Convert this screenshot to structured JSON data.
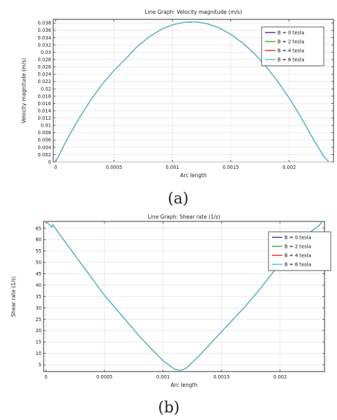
{
  "chart_data": [
    {
      "type": "line",
      "title": "Line Graph: Velocity magnitude (m/s)",
      "xlabel": "Arc length",
      "ylabel": "Velocity magnitude (m/s)",
      "caption": "(a)",
      "xlim": [
        -2e-05,
        0.00238
      ],
      "ylim": [
        0,
        0.039
      ],
      "xticks": [
        0,
        0.0005,
        0.001,
        0.0015,
        0.002
      ],
      "xtick_labels": [
        "0",
        "0.0005",
        "0.001",
        "0.0015",
        "0.002"
      ],
      "yticks": [
        0,
        0.002,
        0.004,
        0.006,
        0.008,
        0.01,
        0.012,
        0.014,
        0.016,
        0.018,
        0.02,
        0.022,
        0.024,
        0.026,
        0.028,
        0.03,
        0.032,
        0.034,
        0.036,
        0.038
      ],
      "ytick_labels": [
        "0",
        "0.002",
        "0.004",
        "0.006",
        "0.008",
        "0.01",
        "0.012",
        "0.014",
        "0.016",
        "0.018",
        "0.02",
        "0.022",
        "0.024",
        "0.026",
        "0.028",
        "0.03",
        "0.032",
        "0.034",
        "0.036",
        "0.038"
      ],
      "grid": true,
      "legend_position": "top-right",
      "series": [
        {
          "name": "B = 0 tesla",
          "color": "#3b3bb3"
        },
        {
          "name": "B = 2 tesla",
          "color": "#3cb43c"
        },
        {
          "name": "B = 4 tesla",
          "color": "#e53030"
        },
        {
          "name": "B = 6 tesla",
          "color": "#4dc9d6"
        }
      ],
      "x": [
        0,
        0.0001,
        0.0002,
        0.0003,
        0.0004,
        0.0005,
        0.0006,
        0.0007,
        0.0008,
        0.0009,
        0.001,
        0.0011,
        0.0012,
        0.0013,
        0.0014,
        0.0015,
        0.0016,
        0.0017,
        0.0018,
        0.0019,
        0.002,
        0.0021,
        0.0022,
        0.0023,
        0.00234
      ],
      "y": [
        0,
        0.0063,
        0.0119,
        0.0169,
        0.0213,
        0.025,
        0.0282,
        0.0316,
        0.0342,
        0.0362,
        0.0375,
        0.0382,
        0.0383,
        0.0378,
        0.0367,
        0.0349,
        0.0326,
        0.0297,
        0.0262,
        0.0221,
        0.0175,
        0.0123,
        0.0066,
        0.0013,
        0
      ]
    },
    {
      "type": "line",
      "title": "Line Graph: Shear rate (1/s)",
      "xlabel": "Arc length",
      "ylabel": "Shear rate (1/s)",
      "caption": "(b)",
      "xlim": [
        -2e-05,
        0.00238
      ],
      "ylim": [
        2,
        68
      ],
      "xticks": [
        0,
        0.0005,
        0.001,
        0.0015,
        0.002
      ],
      "xtick_labels": [
        "0",
        "0.0005",
        "0.001",
        "0.0015",
        "0.002"
      ],
      "yticks": [
        5,
        10,
        15,
        20,
        25,
        30,
        35,
        40,
        45,
        50,
        55,
        60,
        65
      ],
      "ytick_labels": [
        "5",
        "10",
        "15",
        "20",
        "25",
        "30",
        "35",
        "40",
        "45",
        "50",
        "55",
        "60",
        "65"
      ],
      "grid": true,
      "legend_position": "top-right",
      "series": [
        {
          "name": "B = 0 tesla",
          "color": "#3b3bb3"
        },
        {
          "name": "B = 2 tesla",
          "color": "#3cb43c"
        },
        {
          "name": "B = 4 tesla",
          "color": "#e53030"
        },
        {
          "name": "B = 6 tesla",
          "color": "#4dc9d6"
        }
      ],
      "x": [
        0,
        3e-05,
        5e-05,
        6e-05,
        0.0001,
        0.0002,
        0.0003,
        0.0004,
        0.0005,
        0.0006,
        0.0007,
        0.0008,
        0.0009,
        0.001,
        0.0011,
        0.00115,
        0.0012,
        0.0013,
        0.0014,
        0.0015,
        0.0016,
        0.0017,
        0.0018,
        0.0019,
        0.002,
        0.0021,
        0.0022,
        0.0023,
        0.00233,
        0.00236
      ],
      "y": [
        68,
        66.5,
        65.5,
        66.5,
        63.5,
        56.5,
        49.5,
        42.5,
        35.5,
        29.5,
        23.5,
        17.5,
        12,
        6.8,
        3,
        2.5,
        3.5,
        8.5,
        14,
        19.5,
        25,
        30.5,
        36.5,
        43,
        49.5,
        56,
        61,
        65,
        66,
        68
      ]
    }
  ]
}
